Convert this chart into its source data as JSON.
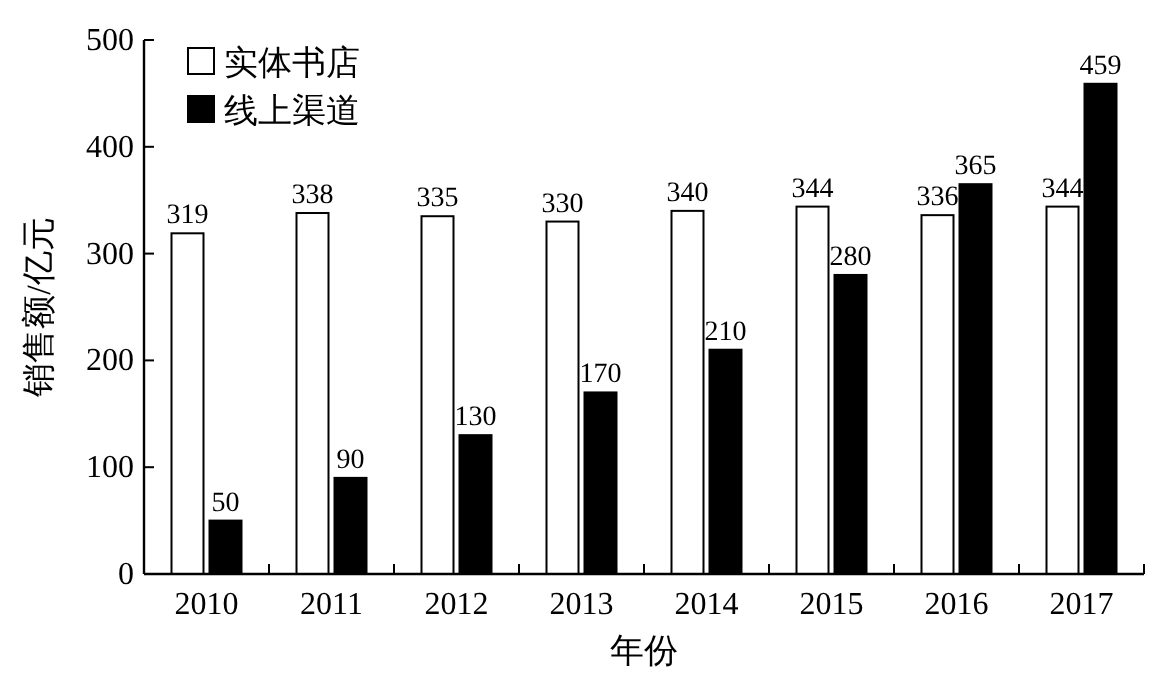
{
  "chart_data": {
    "type": "bar",
    "xlabel": "年份",
    "ylabel": "销售额/亿元",
    "categories": [
      "2010",
      "2011",
      "2012",
      "2013",
      "2014",
      "2015",
      "2016",
      "2017"
    ],
    "series": [
      {
        "name": "实体书店",
        "color": "#ffffff",
        "values": [
          319,
          338,
          335,
          330,
          340,
          344,
          336,
          344
        ]
      },
      {
        "name": "线上渠道",
        "color": "#000000",
        "values": [
          50,
          90,
          130,
          170,
          210,
          280,
          365,
          459
        ]
      }
    ],
    "ylim": [
      0,
      500
    ],
    "yticks": [
      0,
      100,
      200,
      300,
      400,
      500
    ],
    "data_labels": true,
    "legend": "top left"
  }
}
